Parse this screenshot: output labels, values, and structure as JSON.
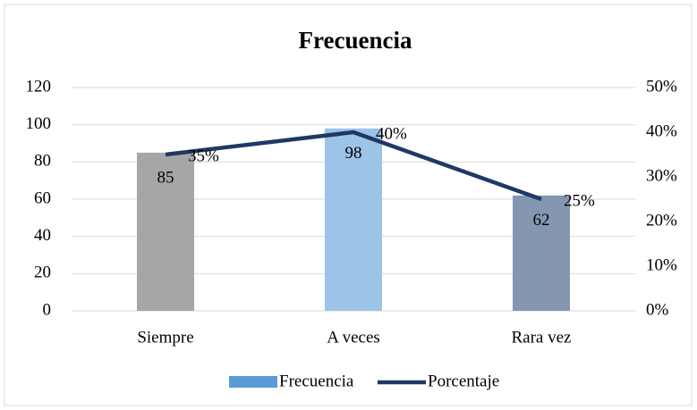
{
  "chart_data": {
    "type": "bar",
    "title": "Frecuencia",
    "categories": [
      "Siempre",
      "A veces",
      "Rara vez"
    ],
    "series": [
      {
        "name": "Frecuencia",
        "type": "bar",
        "color": "#5b9bd5",
        "colors": [
          "#a6a6a6",
          "#9dc3e6",
          "#8497b0"
        ],
        "values": [
          85,
          98,
          62
        ]
      },
      {
        "name": "Porcentaje",
        "type": "line",
        "axis": "y2",
        "color": "#1f3864",
        "values": [
          35,
          40,
          25
        ],
        "value_labels": [
          "35%",
          "40%",
          "25%"
        ]
      }
    ],
    "ylim": [
      0,
      120
    ],
    "yticks": [
      0,
      20,
      40,
      60,
      80,
      100,
      120
    ],
    "y2lim": [
      0,
      50
    ],
    "y2ticks": [
      {
        "value": 0,
        "label": "0%"
      },
      {
        "value": 10,
        "label": "10%"
      },
      {
        "value": 20,
        "label": "20%"
      },
      {
        "value": 30,
        "label": "30%"
      },
      {
        "value": 40,
        "label": "40%"
      },
      {
        "value": 50,
        "label": "50%"
      }
    ],
    "grid": true,
    "legend": "bottom"
  }
}
